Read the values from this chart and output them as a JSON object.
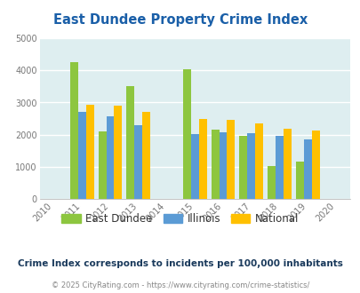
{
  "title": "East Dundee Property Crime Index",
  "years": [
    2010,
    2011,
    2012,
    2013,
    2014,
    2015,
    2016,
    2017,
    2018,
    2019,
    2020
  ],
  "bar_years": [
    2011,
    2012,
    2013,
    2015,
    2016,
    2017,
    2018,
    2019
  ],
  "east_dundee": [
    4250,
    2100,
    3500,
    4020,
    2150,
    1970,
    1030,
    1170
  ],
  "illinois": [
    2700,
    2570,
    2300,
    2020,
    2070,
    2060,
    1970,
    1870
  ],
  "national": [
    2930,
    2890,
    2720,
    2490,
    2470,
    2360,
    2180,
    2130
  ],
  "color_ed": "#8dc63f",
  "color_il": "#5b9bd5",
  "color_na": "#ffc000",
  "ylim": [
    0,
    5000
  ],
  "yticks": [
    0,
    1000,
    2000,
    3000,
    4000,
    5000
  ],
  "bg_color": "#deeef0",
  "grid_color": "#ffffff",
  "subtitle": "Crime Index corresponds to incidents per 100,000 inhabitants",
  "footer": "© 2025 CityRating.com - https://www.cityrating.com/crime-statistics/",
  "title_color": "#1a5fa8",
  "subtitle_color": "#1a3a5c",
  "footer_color": "#888888",
  "legend_labels": [
    "East Dundee",
    "Illinois",
    "National"
  ],
  "bar_width": 0.28
}
